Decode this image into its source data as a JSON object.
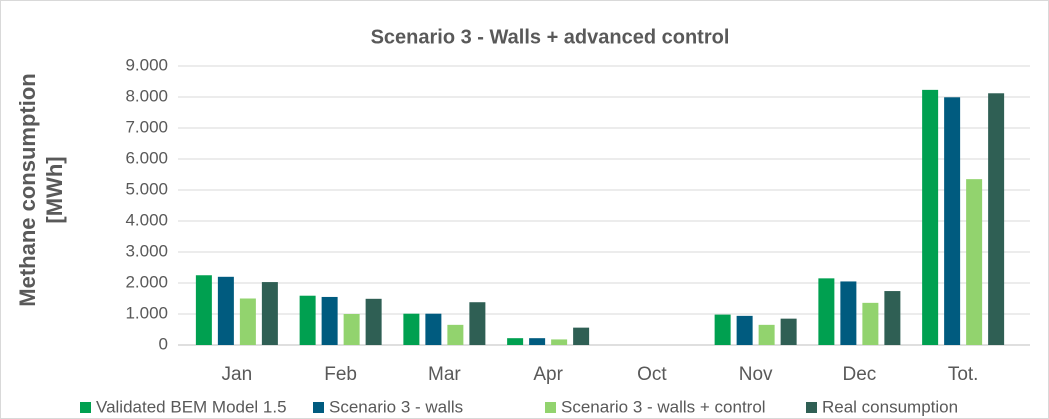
{
  "chart_data": {
    "type": "bar",
    "title": "Scenario 3 - Walls + advanced control",
    "y_label": "Methane consumption [MWh]",
    "categories": [
      "Jan",
      "Feb",
      "Mar",
      "Apr",
      "Oct",
      "Nov",
      "Dec",
      "Tot."
    ],
    "series": [
      {
        "name": "Validated BEM Model 1.5",
        "color": "#00a050",
        "values": [
          2250,
          1590,
          1010,
          220,
          0,
          980,
          2150,
          8230
        ]
      },
      {
        "name": "Scenario 3 - walls",
        "color": "#005b7f",
        "values": [
          2200,
          1550,
          1010,
          220,
          0,
          940,
          2050,
          7990
        ]
      },
      {
        "name": "Scenario 3 - walls + control",
        "color": "#92d36e",
        "values": [
          1500,
          1000,
          650,
          180,
          0,
          650,
          1360,
          5350
        ]
      },
      {
        "name": "Real consumption",
        "color": "#2f5f54",
        "values": [
          2030,
          1490,
          1380,
          560,
          0,
          850,
          1740,
          8120
        ]
      }
    ],
    "ylim": [
      0,
      9000
    ],
    "yticks": [
      0,
      {
        "value": 1000,
        "label": "1.000"
      },
      {
        "value": 2000,
        "label": "2.000"
      },
      {
        "value": 3000,
        "label": "3.000"
      },
      {
        "value": 4000,
        "label": "4.000"
      },
      {
        "value": 5000,
        "label": "5.000"
      },
      {
        "value": 6000,
        "label": "6.000"
      },
      {
        "value": 7000,
        "label": "7.000"
      },
      {
        "value": 8000,
        "label": "8.000"
      },
      {
        "value": 9000,
        "label": "9.000"
      }
    ],
    "grid": true,
    "legend": "bottom"
  }
}
